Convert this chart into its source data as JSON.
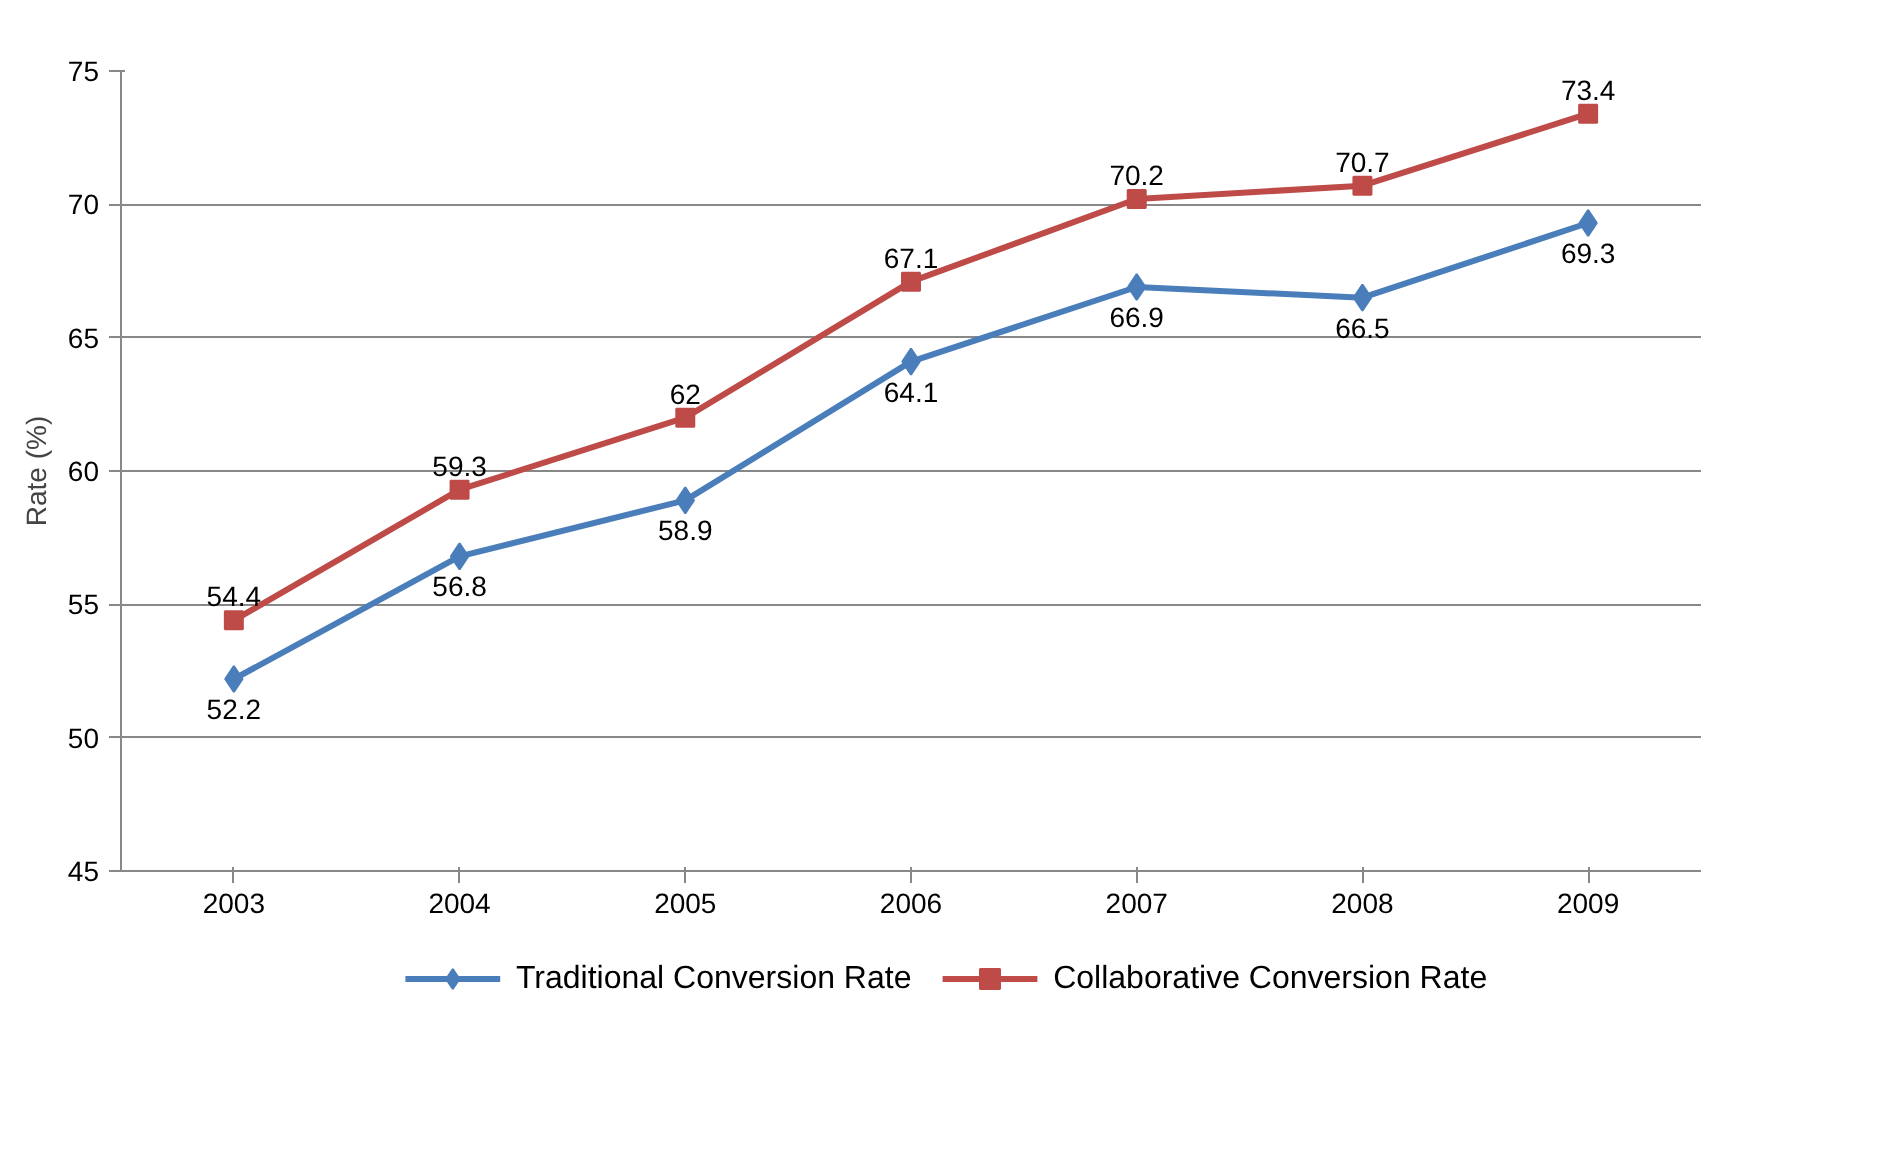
{
  "chart_data": {
    "type": "line",
    "ylabel": "Rate (%)",
    "categories": [
      "2003",
      "2004",
      "2005",
      "2006",
      "2007",
      "2008",
      "2009"
    ],
    "series": [
      {
        "name": "Traditional Conversion Rate",
        "color": "#4a7ebb",
        "marker": "diamond",
        "values": [
          52.2,
          56.8,
          58.9,
          64.1,
          66.9,
          66.5,
          69.3
        ]
      },
      {
        "name": "Collaborative Conversion Rate",
        "color": "#be4b48",
        "marker": "square",
        "values": [
          54.4,
          59.3,
          62,
          67.1,
          70.2,
          70.7,
          73.4
        ]
      }
    ],
    "ylim": [
      45,
      75
    ],
    "yticks": [
      45,
      50,
      55,
      60,
      65,
      70,
      75
    ],
    "grid": "y",
    "legend": "bottom",
    "data_labels": true,
    "line_style": "solid"
  }
}
